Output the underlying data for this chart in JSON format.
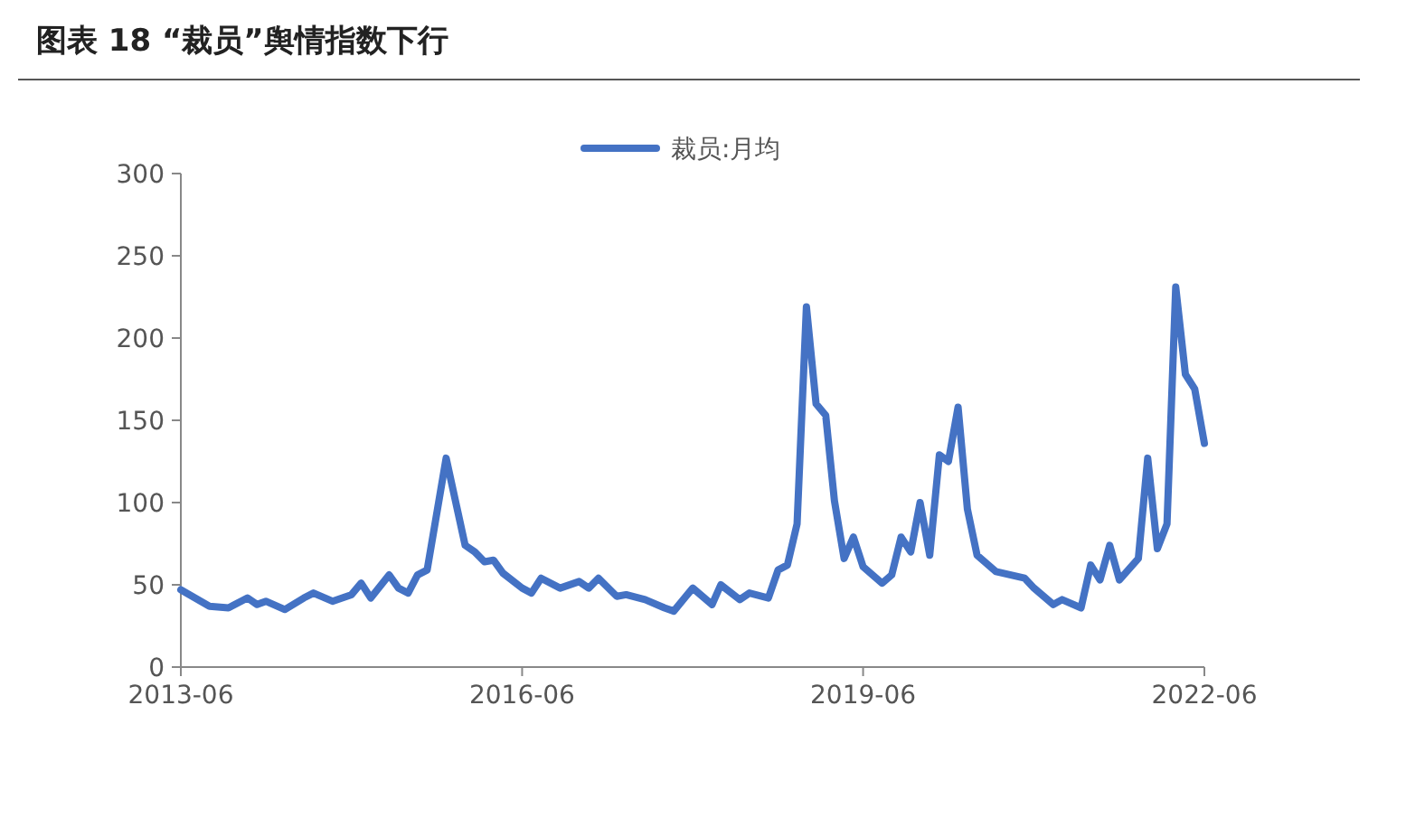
{
  "chart_data": {
    "type": "line",
    "title": "图表 18 “裁员”舆情指数下行",
    "x": [
      "2013-06",
      "2013-09",
      "2013-11",
      "2014-01",
      "2014-02",
      "2014-03",
      "2014-05",
      "2014-07",
      "2014-08",
      "2014-10",
      "2014-12",
      "2015-01",
      "2015-02",
      "2015-04",
      "2015-05",
      "2015-06",
      "2015-07",
      "2015-08",
      "2015-10",
      "2015-12",
      "2016-01",
      "2016-02",
      "2016-03",
      "2016-04",
      "2016-06",
      "2016-07",
      "2016-08",
      "2016-10",
      "2016-12",
      "2017-01",
      "2017-02",
      "2017-04",
      "2017-05",
      "2017-07",
      "2017-09",
      "2017-10",
      "2017-12",
      "2018-02",
      "2018-03",
      "2018-05",
      "2018-06",
      "2018-08",
      "2018-09",
      "2018-10",
      "2018-11",
      "2018-12",
      "2019-01",
      "2019-02",
      "2019-03",
      "2019-04",
      "2019-05",
      "2019-06",
      "2019-08",
      "2019-09",
      "2019-10",
      "2019-11",
      "2019-12",
      "2020-01",
      "2020-02",
      "2020-03",
      "2020-04",
      "2020-05",
      "2020-06",
      "2020-08",
      "2020-11",
      "2020-12",
      "2021-02",
      "2021-03",
      "2021-05",
      "2021-06",
      "2021-07",
      "2021-08",
      "2021-09",
      "2021-11",
      "2021-12",
      "2022-01",
      "2022-02",
      "2022-03",
      "2022-04",
      "2022-05",
      "2022-06"
    ],
    "series": [
      {
        "name": "裁员:月均",
        "color": "#4472c4",
        "values": [
          47,
          37,
          36,
          42,
          38,
          40,
          35,
          42,
          45,
          40,
          44,
          51,
          42,
          56,
          48,
          45,
          56,
          59,
          127,
          74,
          70,
          64,
          65,
          57,
          48,
          45,
          54,
          48,
          52,
          48,
          54,
          43,
          44,
          41,
          36,
          34,
          48,
          38,
          50,
          41,
          45,
          42,
          59,
          62,
          87,
          219,
          160,
          153,
          101,
          66,
          79,
          61,
          51,
          56,
          79,
          70,
          100,
          68,
          129,
          125,
          158,
          96,
          68,
          58,
          54,
          48,
          38,
          41,
          36,
          62,
          53,
          74,
          53,
          66,
          127,
          72,
          87,
          231,
          178,
          169,
          136
        ]
      }
    ],
    "xlim": [
      "2013-06",
      "2022-06"
    ],
    "xticks": [
      "2013-06",
      "2016-06",
      "2019-06",
      "2022-06"
    ],
    "ylim": [
      0,
      300
    ],
    "yticks": [
      0,
      50,
      100,
      150,
      200,
      250,
      300
    ],
    "grid": false,
    "legend": "top",
    "marker": "none",
    "line_style": "solid"
  }
}
